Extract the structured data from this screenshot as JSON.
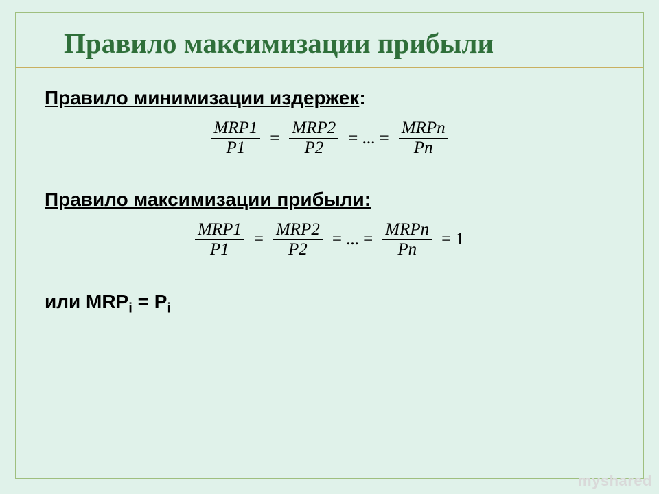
{
  "colors": {
    "slide_bg": "#e0f2ea",
    "frame_border": "#9fbf7f",
    "title_color": "#2f6f3a",
    "text_color": "#000000",
    "rule_color": "#c9b060",
    "watermark_color": "#d9d9d9"
  },
  "title": "Правило максимизации прибыли",
  "section1": {
    "label_underlined": "Правило минимизации издержек",
    "label_suffix": ":"
  },
  "eq1": {
    "t1_num": "MRP1",
    "t1_den": "P1",
    "t2_num": "MRP2",
    "t2_den": "P2",
    "tn_num": "MRPn",
    "tn_den": "Pn",
    "eq_sign": "=",
    "dots": "= ... ="
  },
  "section2": {
    "label_underlined": "Правило максимизации прибыли:"
  },
  "eq2": {
    "t1_num": "MRP1",
    "t1_den": "P1",
    "t2_num": "MRP2",
    "t2_den": "P2",
    "tn_num": "MRPn",
    "tn_den": "Pn",
    "eq_sign": "=",
    "dots": "= ... =",
    "rhs": "= 1"
  },
  "or_line": {
    "prefix": "или ",
    "mrp": "MRP",
    "sub1": "i",
    "eq": " = ",
    "p": "P",
    "sub2": "i"
  },
  "watermark": "myshared"
}
